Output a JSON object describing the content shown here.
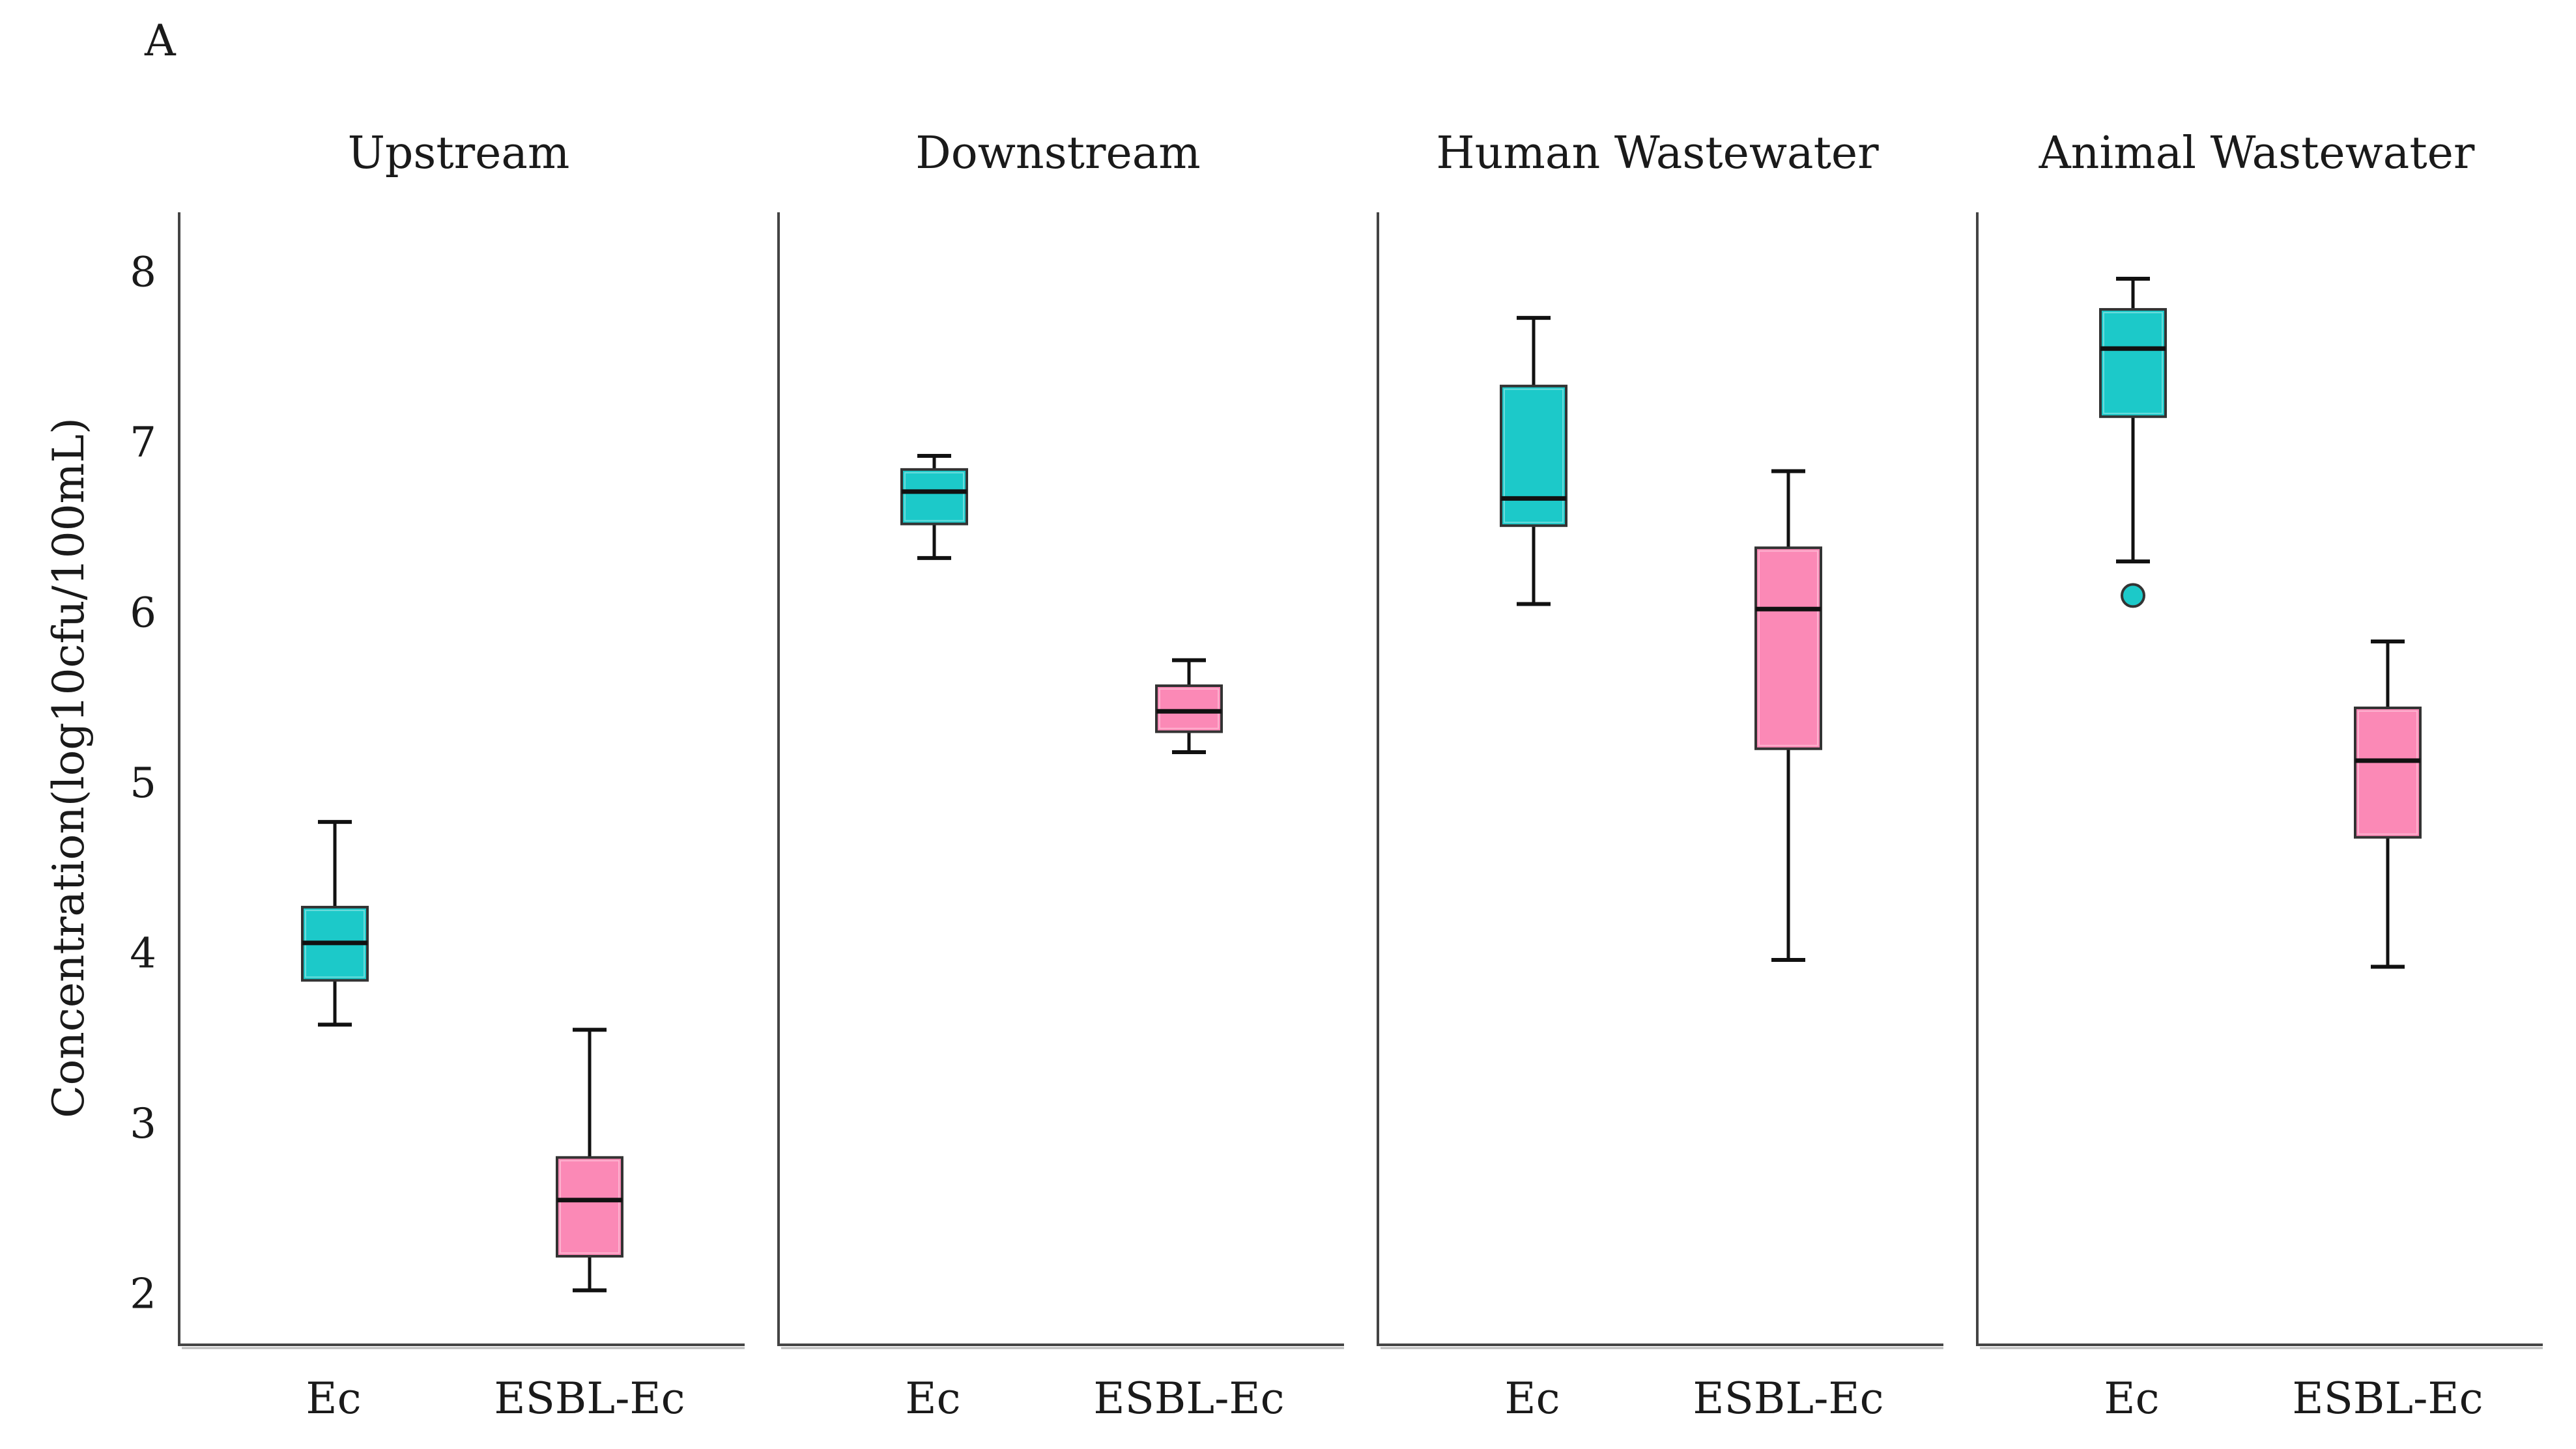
{
  "figure_label": "A",
  "chart_data": {
    "type": "box",
    "ylabel": "Concentration(log10cfu/100mL)",
    "ylim": [
      1.7,
      8.35
    ],
    "yticks": [
      2,
      3,
      4,
      5,
      6,
      7,
      8
    ],
    "categories": [
      "Ec",
      "ESBL-Ec"
    ],
    "colors": {
      "Ec": "#1cc9c9",
      "ESBL-Ec": "#fb89b6"
    },
    "panels": [
      {
        "title": "Upstream",
        "boxes": [
          {
            "category": "Ec",
            "whisker_low": 3.58,
            "q1": 3.84,
            "median": 4.06,
            "q3": 4.27,
            "whisker_high": 4.77,
            "outliers": []
          },
          {
            "category": "ESBL-Ec",
            "whisker_low": 2.02,
            "q1": 2.22,
            "median": 2.55,
            "q3": 2.8,
            "whisker_high": 3.55,
            "outliers": []
          }
        ]
      },
      {
        "title": "Downstream",
        "boxes": [
          {
            "category": "Ec",
            "whisker_low": 6.32,
            "q1": 6.52,
            "median": 6.71,
            "q3": 6.84,
            "whisker_high": 6.92,
            "outliers": []
          },
          {
            "category": "ESBL-Ec",
            "whisker_low": 5.18,
            "q1": 5.3,
            "median": 5.42,
            "q3": 5.57,
            "whisker_high": 5.72,
            "outliers": []
          }
        ]
      },
      {
        "title": "Human Wastewater",
        "boxes": [
          {
            "category": "Ec",
            "whisker_low": 6.05,
            "q1": 6.51,
            "median": 6.67,
            "q3": 7.33,
            "whisker_high": 7.73,
            "outliers": []
          },
          {
            "category": "ESBL-Ec",
            "whisker_low": 3.96,
            "q1": 5.2,
            "median": 6.02,
            "q3": 6.38,
            "whisker_high": 6.83,
            "outliers": []
          }
        ]
      },
      {
        "title": "Animal Wastewater",
        "boxes": [
          {
            "category": "Ec",
            "whisker_low": 6.3,
            "q1": 7.15,
            "median": 7.55,
            "q3": 7.78,
            "whisker_high": 7.96,
            "outliers": [
              6.1
            ]
          },
          {
            "category": "ESBL-Ec",
            "whisker_low": 3.92,
            "q1": 4.68,
            "median": 5.13,
            "q3": 5.44,
            "whisker_high": 5.83,
            "outliers": []
          }
        ]
      }
    ]
  }
}
